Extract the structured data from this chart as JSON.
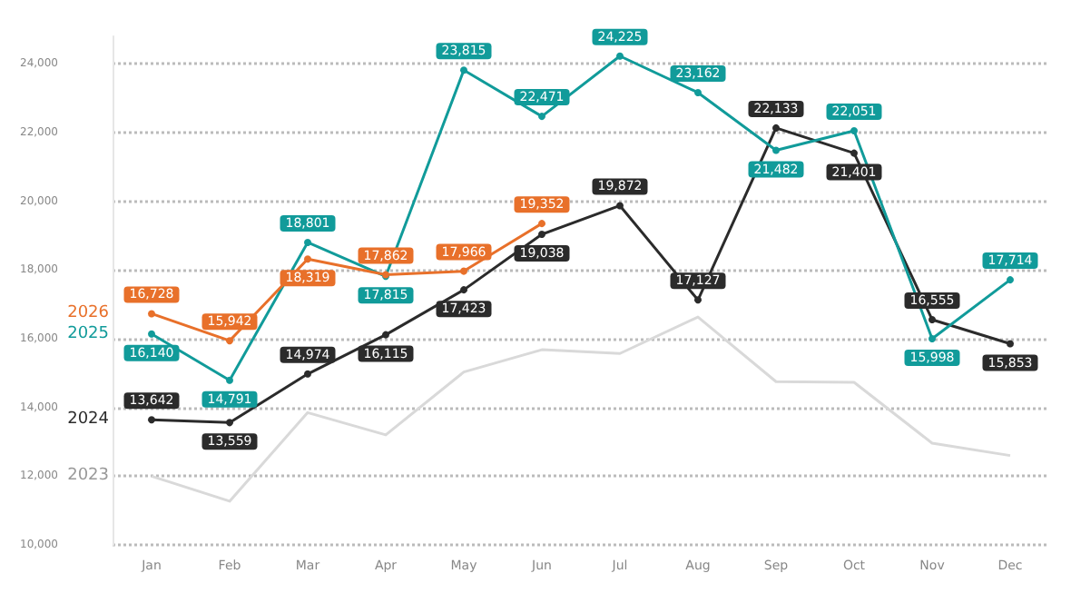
{
  "chart_data": {
    "type": "line",
    "categories": [
      "Jan",
      "Feb",
      "Mar",
      "Apr",
      "May",
      "Jun",
      "Jul",
      "Aug",
      "Sep",
      "Oct",
      "Nov",
      "Dec"
    ],
    "series": [
      {
        "name": "2023",
        "color": "#d9d9d9",
        "marker": "none",
        "values": [
          12000,
          11270,
          13850,
          13200,
          15030,
          15680,
          15570,
          16630,
          14750,
          14730,
          12960,
          12600
        ]
      },
      {
        "name": "2024",
        "color": "#2b2b2b",
        "values": [
          13642,
          13559,
          14974,
          16115,
          17423,
          19038,
          19872,
          17127,
          22133,
          21401,
          16555,
          15853
        ],
        "value_labels": [
          "13,642",
          "13,559",
          "14,974",
          "16,115",
          "17,423",
          "19,038",
          "19,872",
          "17,127",
          "22,133",
          "21,401",
          "16,555",
          "15,853"
        ]
      },
      {
        "name": "2025",
        "color": "#119b9a",
        "values": [
          16140,
          14791,
          18801,
          17815,
          23815,
          22471,
          24225,
          23162,
          21482,
          22051,
          15998,
          17714
        ],
        "value_labels": [
          "16,140",
          "14,791",
          "18,801",
          "17,815",
          "23,815",
          "22,471",
          "24,225",
          "23,162",
          "21,482",
          "22,051",
          "15,998",
          "17,714"
        ]
      },
      {
        "name": "2026",
        "color": "#e8702a",
        "values": [
          16728,
          15942,
          18319,
          17862,
          17966,
          19352,
          null,
          null,
          null,
          null,
          null,
          null
        ],
        "value_labels": [
          "16,728",
          "15,942",
          "18,319",
          "17,862",
          "17,966",
          "19,352",
          null,
          null,
          null,
          null,
          null,
          null
        ]
      }
    ],
    "ylim": [
      10000,
      24800
    ],
    "yticks": [
      {
        "value": 10000,
        "label": "10,000"
      },
      {
        "value": 12000,
        "label": "12,000"
      },
      {
        "value": 14000,
        "label": "14,000"
      },
      {
        "value": 16000,
        "label": "16,000"
      },
      {
        "value": 18000,
        "label": "18,000"
      },
      {
        "value": 20000,
        "label": "20,000"
      },
      {
        "value": 22000,
        "label": "22,000"
      },
      {
        "value": 24000,
        "label": "24,000"
      }
    ],
    "grid": "y",
    "legend": false,
    "marker": "circle",
    "line_style": "solid"
  }
}
